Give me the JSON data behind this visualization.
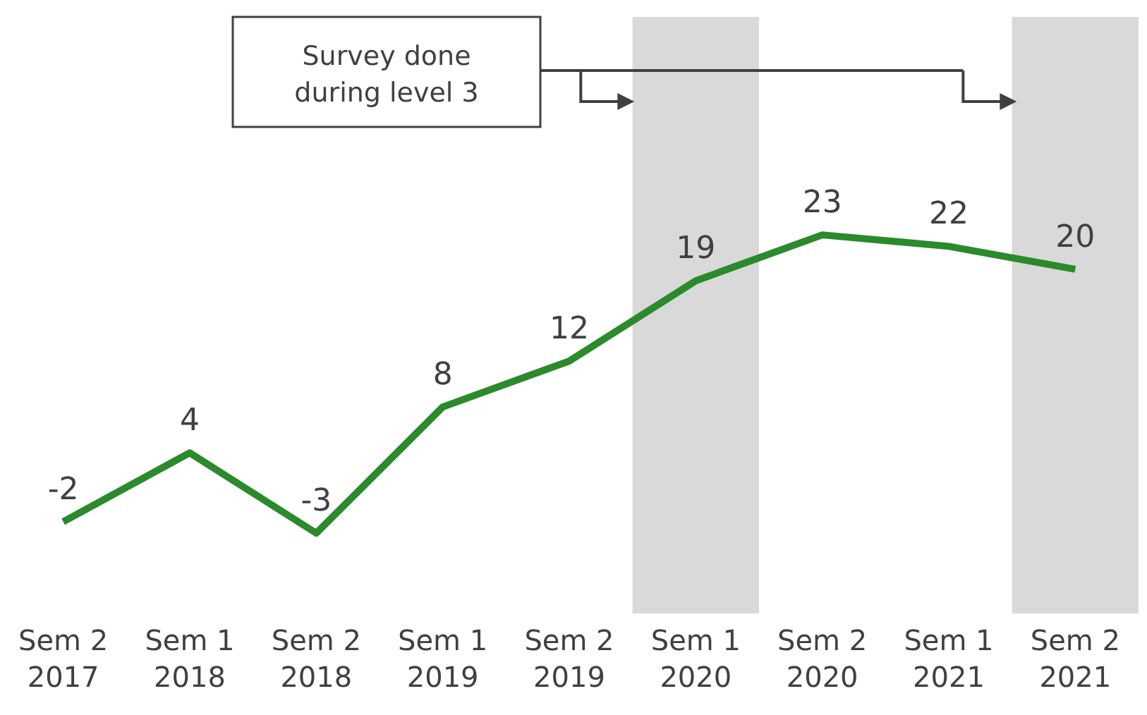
{
  "chart_data": {
    "type": "line",
    "categories": [
      "Sem 2 2017",
      "Sem 1 2018",
      "Sem 2 2018",
      "Sem 1 2019",
      "Sem 2 2019",
      "Sem 1 2020",
      "Sem 2 2020",
      "Sem 1 2021",
      "Sem 2 2021"
    ],
    "series": [
      {
        "color": "#2b8a2b",
        "values": [
          -2,
          4,
          -3,
          8,
          12,
          19,
          23,
          22,
          20
        ]
      }
    ],
    "tick_labels": "x",
    "data_labels": true,
    "legend": false,
    "grid": false,
    "marker": "none",
    "bands": [
      {
        "axis": "x",
        "from": "Sem 1 2020",
        "to": "Sem 1 2020",
        "color": "#d9d9d9"
      },
      {
        "axis": "x",
        "from": "Sem 2 2021",
        "to": "Sem 2 2021",
        "color": "#d9d9d9"
      }
    ],
    "annotations": [
      "Survey done during level 3"
    ]
  }
}
